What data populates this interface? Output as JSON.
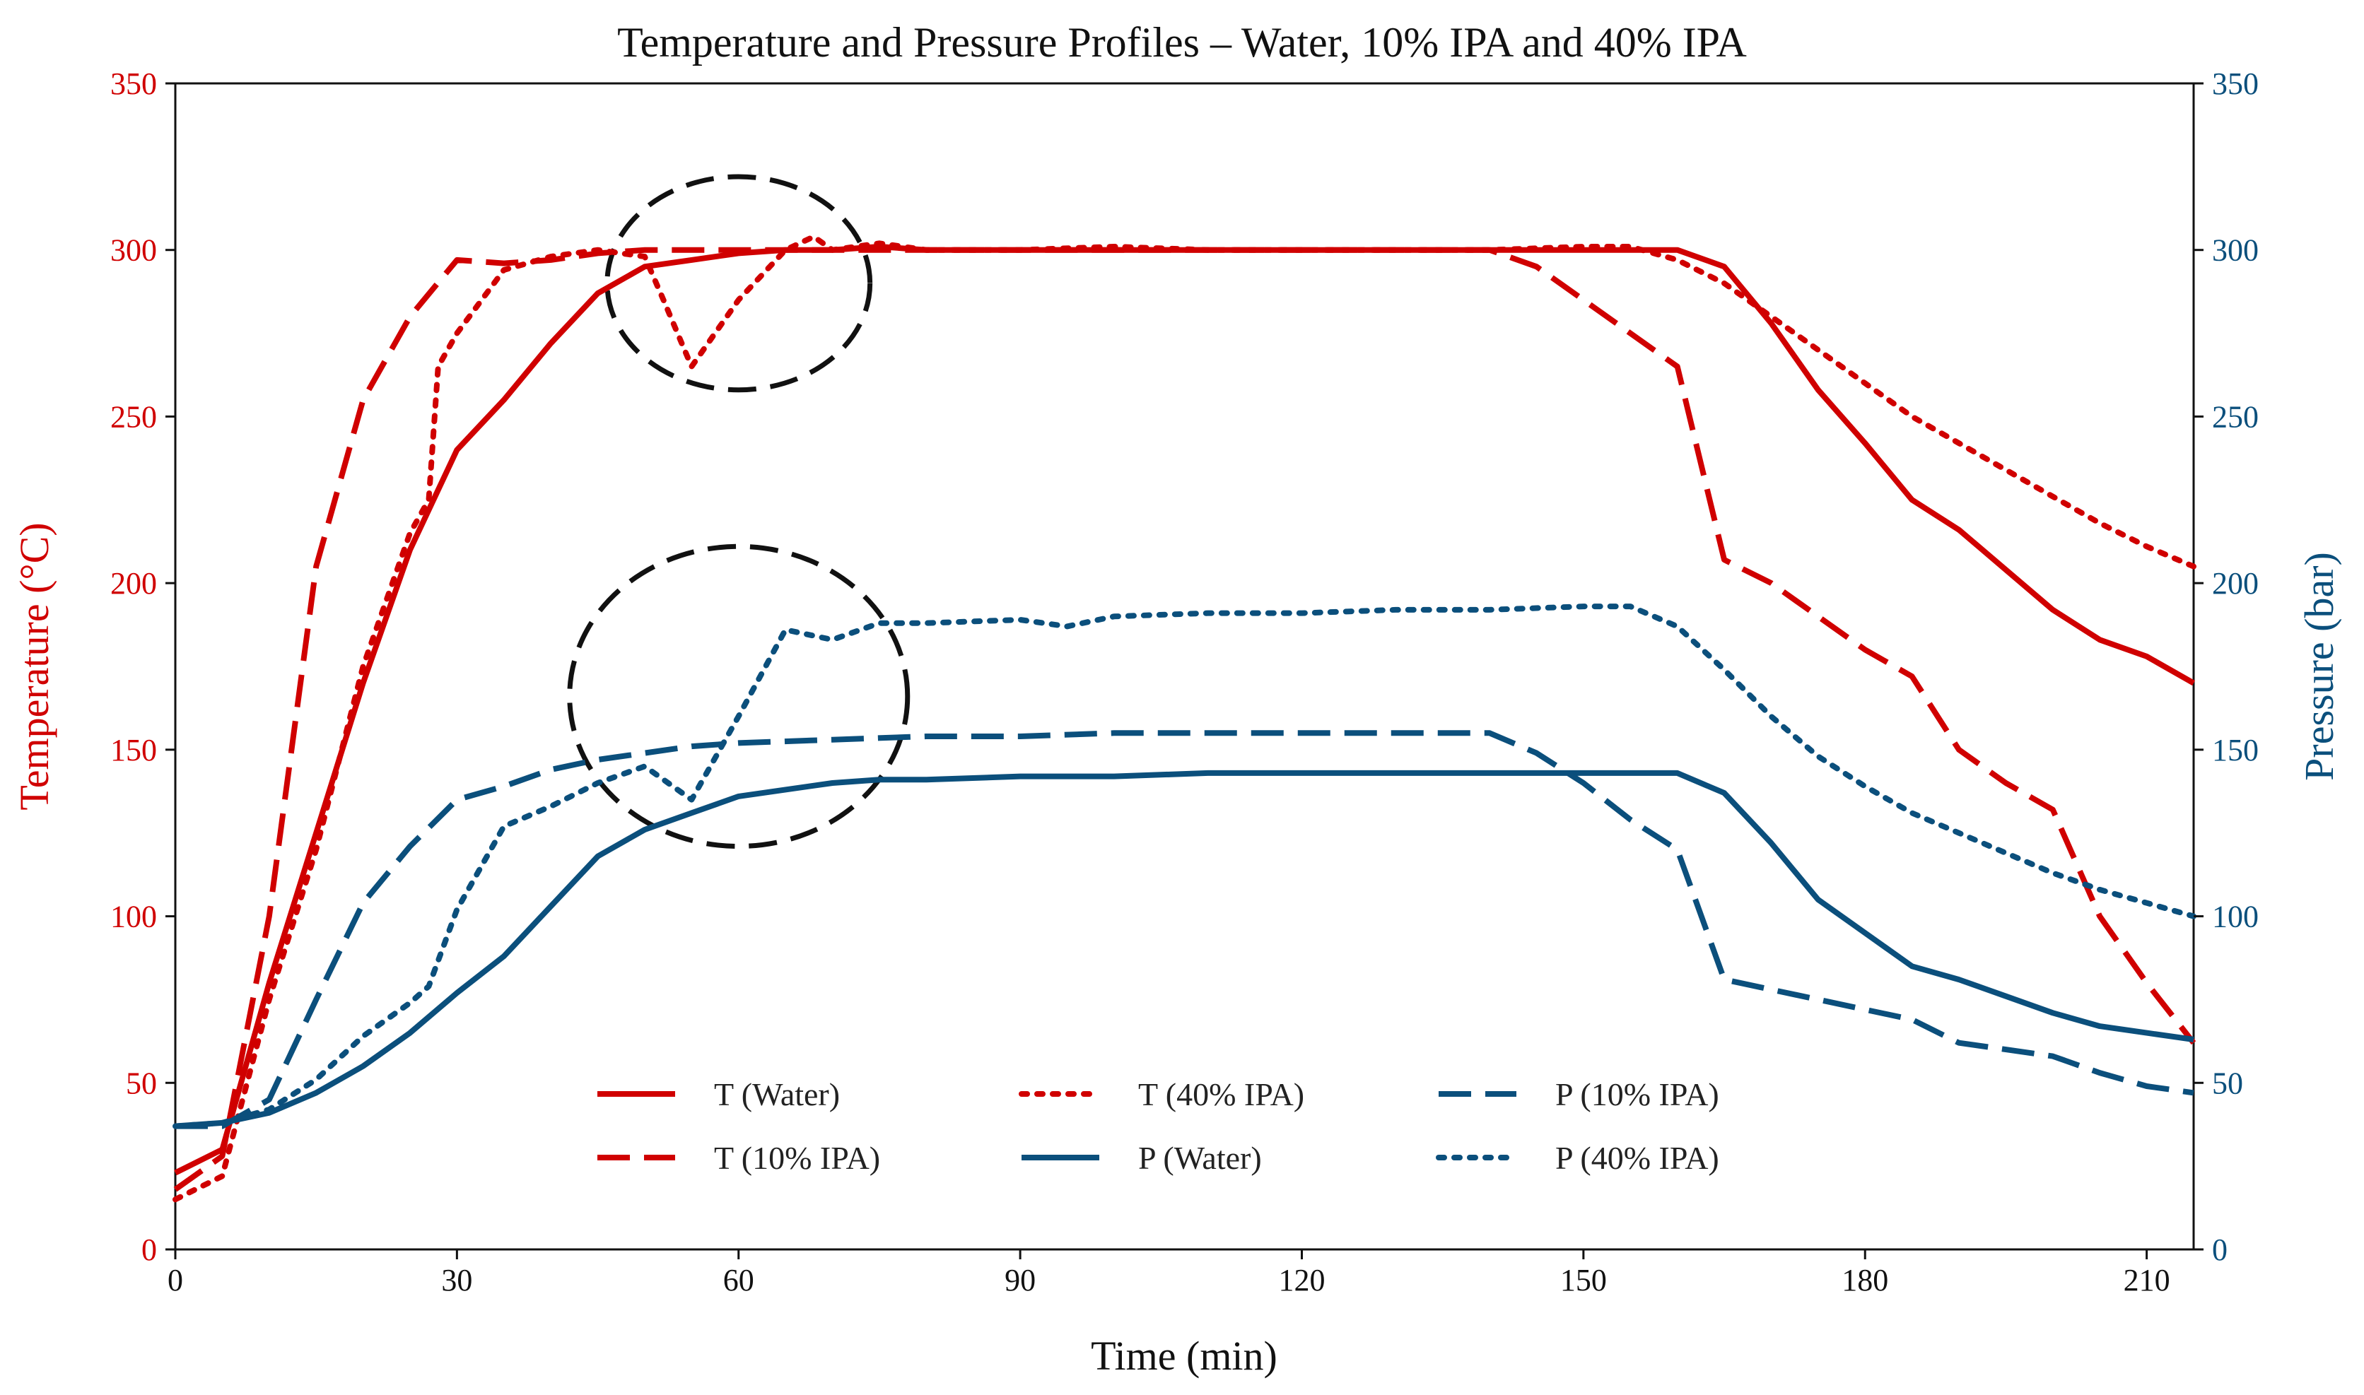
{
  "chart_data": {
    "type": "line",
    "title": "Temperature and Pressure Profiles – Water, 10% IPA and 40% IPA",
    "xlabel": "Time (min)",
    "ylabel_left": "Temperature (°C)",
    "ylabel_right": "Pressure (bar)",
    "xlim": [
      0,
      215
    ],
    "ylim_left": [
      0,
      350
    ],
    "ylim_right": [
      0,
      350
    ],
    "xticks": [
      0,
      30,
      60,
      90,
      120,
      150,
      180,
      210
    ],
    "yticks_left": [
      0,
      50,
      100,
      150,
      200,
      250,
      300,
      350
    ],
    "yticks_right": [
      0,
      50,
      100,
      150,
      200,
      250,
      300,
      350
    ],
    "grid": false,
    "legend_position": "bottom-center",
    "colors": {
      "temperature": "#d00000",
      "pressure": "#0b4f7c",
      "annotation": "#111111"
    },
    "series": [
      {
        "name": "T (Water)",
        "axis": "left",
        "color": "#d00000",
        "style": "solid",
        "x": [
          0,
          5,
          10,
          15,
          20,
          25,
          30,
          35,
          40,
          45,
          50,
          55,
          60,
          65,
          70,
          75,
          80,
          90,
          100,
          110,
          120,
          130,
          140,
          150,
          155,
          160,
          165,
          170,
          175,
          180,
          185,
          190,
          195,
          200,
          205,
          210,
          215
        ],
        "y": [
          23,
          30,
          80,
          125,
          170,
          210,
          240,
          255,
          272,
          287,
          295,
          297,
          299,
          300,
          300,
          301,
          300,
          300,
          300,
          300,
          300,
          300,
          300,
          300,
          300,
          300,
          295,
          278,
          258,
          242,
          225,
          216,
          204,
          192,
          183,
          178,
          170
        ]
      },
      {
        "name": "T (10% IPA)",
        "axis": "left",
        "color": "#d00000",
        "style": "dashed",
        "x": [
          0,
          5,
          10,
          15,
          20,
          25,
          30,
          35,
          40,
          45,
          50,
          60,
          70,
          80,
          90,
          100,
          110,
          120,
          130,
          140,
          145,
          150,
          155,
          160,
          165,
          170,
          175,
          180,
          185,
          190,
          195,
          200,
          205,
          210,
          215
        ],
        "y": [
          18,
          28,
          100,
          205,
          255,
          280,
          297,
          296,
          297,
          299,
          300,
          300,
          300,
          300,
          300,
          300,
          300,
          300,
          300,
          300,
          295,
          285,
          275,
          265,
          207,
          200,
          190,
          180,
          172,
          150,
          140,
          132,
          100,
          80,
          62
        ]
      },
      {
        "name": "T (40% IPA)",
        "axis": "left",
        "color": "#d00000",
        "style": "dotted",
        "x": [
          0,
          5,
          10,
          15,
          20,
          25,
          27,
          28,
          30,
          35,
          40,
          45,
          50,
          52,
          55,
          60,
          65,
          68,
          70,
          75,
          80,
          90,
          100,
          110,
          120,
          130,
          140,
          150,
          155,
          160,
          165,
          170,
          175,
          180,
          185,
          190,
          195,
          200,
          205,
          210,
          215
        ],
        "y": [
          15,
          22,
          75,
          120,
          175,
          215,
          225,
          265,
          275,
          294,
          298,
          300,
          298,
          285,
          265,
          285,
          300,
          304,
          300,
          302,
          300,
          300,
          301,
          300,
          300,
          300,
          300,
          301,
          301,
          297,
          290,
          280,
          270,
          260,
          250,
          242,
          234,
          226,
          218,
          211,
          205
        ]
      },
      {
        "name": "P (Water)",
        "axis": "right",
        "color": "#0b4f7c",
        "style": "solid",
        "x": [
          0,
          5,
          10,
          15,
          20,
          25,
          30,
          35,
          40,
          45,
          50,
          55,
          60,
          65,
          70,
          75,
          80,
          90,
          100,
          110,
          120,
          130,
          140,
          150,
          155,
          160,
          165,
          170,
          175,
          180,
          185,
          190,
          195,
          200,
          205,
          210,
          215
        ],
        "y": [
          37,
          38,
          41,
          47,
          55,
          65,
          77,
          88,
          103,
          118,
          126,
          131,
          136,
          138,
          140,
          141,
          141,
          142,
          142,
          143,
          143,
          143,
          143,
          143,
          143,
          143,
          137,
          122,
          105,
          95,
          85,
          81,
          76,
          71,
          67,
          65,
          63
        ]
      },
      {
        "name": "P (10% IPA)",
        "axis": "right",
        "color": "#0b4f7c",
        "style": "dashed",
        "x": [
          0,
          5,
          10,
          15,
          20,
          25,
          30,
          35,
          40,
          45,
          50,
          55,
          60,
          70,
          80,
          90,
          100,
          110,
          120,
          130,
          140,
          145,
          150,
          155,
          160,
          165,
          170,
          175,
          180,
          185,
          190,
          195,
          200,
          205,
          210,
          215
        ],
        "y": [
          37,
          37,
          45,
          75,
          104,
          121,
          135,
          139,
          144,
          147,
          149,
          151,
          152,
          153,
          154,
          154,
          155,
          155,
          155,
          155,
          155,
          149,
          140,
          129,
          120,
          81,
          78,
          75,
          72,
          69,
          62,
          60,
          58,
          53,
          49,
          47
        ]
      },
      {
        "name": "P (40% IPA)",
        "axis": "right",
        "color": "#0b4f7c",
        "style": "dotted",
        "x": [
          0,
          5,
          10,
          15,
          20,
          25,
          27,
          30,
          35,
          40,
          45,
          50,
          55,
          60,
          65,
          70,
          75,
          80,
          90,
          95,
          100,
          110,
          120,
          130,
          140,
          150,
          155,
          160,
          165,
          170,
          175,
          180,
          185,
          190,
          195,
          200,
          205,
          210,
          215
        ],
        "y": [
          37,
          38,
          42,
          51,
          64,
          74,
          79,
          102,
          127,
          133,
          140,
          145,
          135,
          160,
          186,
          183,
          188,
          188,
          189,
          187,
          190,
          191,
          191,
          192,
          192,
          193,
          193,
          187,
          174,
          160,
          148,
          139,
          131,
          125,
          119,
          113,
          108,
          104,
          100
        ]
      }
    ],
    "annotations": [
      {
        "type": "dashed-ellipse",
        "name": "temperature-dip-circle",
        "cx": 60,
        "cy": 290,
        "rx": 14,
        "ry": 32
      },
      {
        "type": "dashed-ellipse",
        "name": "pressure-dip-circle",
        "cx": 60,
        "cy": 166,
        "rx": 18,
        "ry": 45
      }
    ]
  }
}
